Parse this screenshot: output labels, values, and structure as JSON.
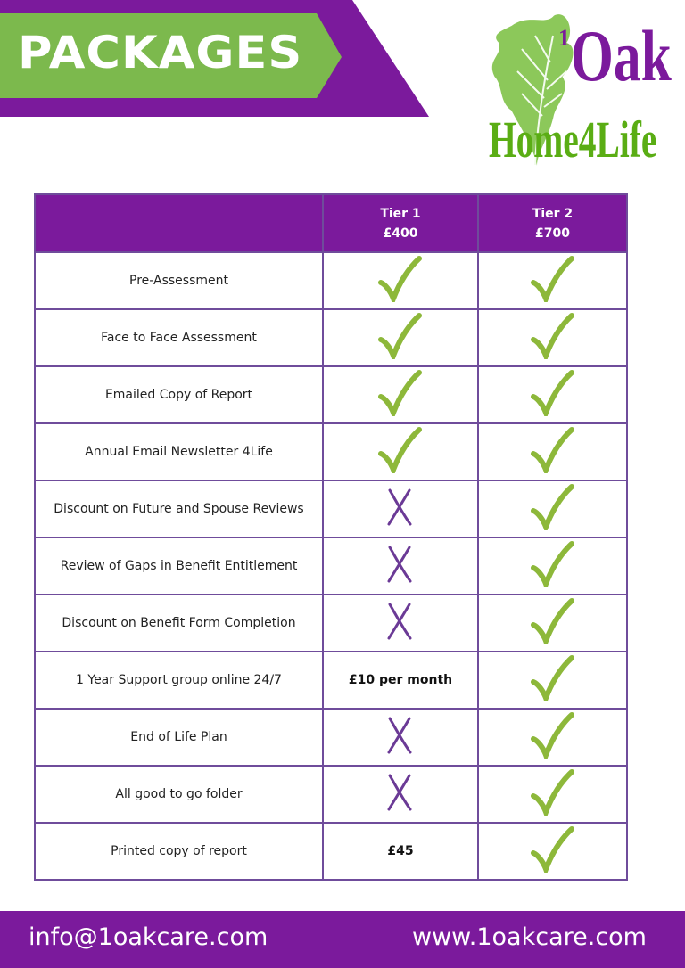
{
  "header": {
    "title": "PACKAGES"
  },
  "logo": {
    "sup": "1",
    "name": "Oak",
    "tagline": "Home4Life"
  },
  "table": {
    "columns": [
      {
        "name": "Tier 1",
        "price": "£400"
      },
      {
        "name": "Tier 2",
        "price": "£700"
      }
    ],
    "rows": [
      {
        "feature": "Pre-Assessment",
        "tier1": "check",
        "tier2": "check"
      },
      {
        "feature": "Face to Face Assessment",
        "tier1": "check",
        "tier2": "check"
      },
      {
        "feature": "Emailed Copy of Report",
        "tier1": "check",
        "tier2": "check"
      },
      {
        "feature": "Annual Email Newsletter 4Life",
        "tier1": "check",
        "tier2": "check"
      },
      {
        "feature": "Discount on Future and Spouse Reviews",
        "tier1": "cross",
        "tier2": "check"
      },
      {
        "feature": "Review of Gaps in Benefit Entitlement",
        "tier1": "cross",
        "tier2": "check"
      },
      {
        "feature": "Discount on Benefit Form Completion",
        "tier1": "cross",
        "tier2": "check"
      },
      {
        "feature": "1 Year Support group online 24/7",
        "tier1": "£10 per month",
        "tier2": "check"
      },
      {
        "feature": "End of Life Plan",
        "tier1": "cross",
        "tier2": "check"
      },
      {
        "feature": "All good to go folder",
        "tier1": "cross",
        "tier2": "check"
      },
      {
        "feature": "Printed copy of report",
        "tier1": "£45",
        "tier2": "check"
      }
    ]
  },
  "footer": {
    "email": "info@1oakcare.com",
    "website": "www.1oakcare.com"
  },
  "colors": {
    "purple": "#7b1a9c",
    "green": "#7cb94d",
    "check": "#8db83a",
    "cross": "#6b3a96"
  }
}
